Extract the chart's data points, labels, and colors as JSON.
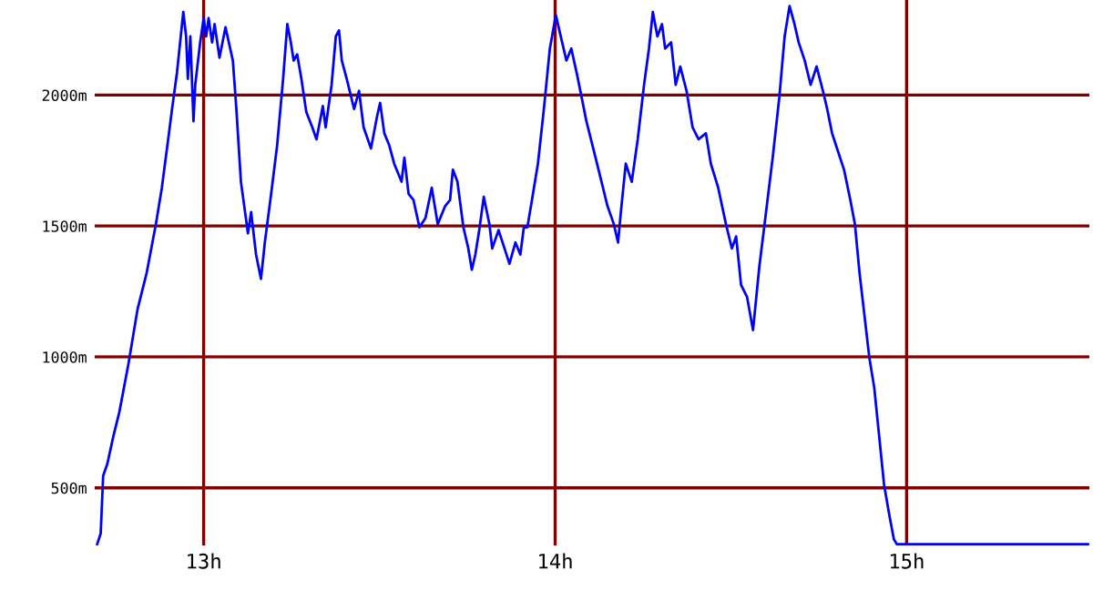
{
  "chart_data": {
    "type": "line",
    "xlim": [
      12.69,
      15.52
    ],
    "ylim": [
      280,
      2363
    ],
    "xticks": [
      {
        "value": 13,
        "label": "13h"
      },
      {
        "value": 14,
        "label": "14h"
      },
      {
        "value": 15,
        "label": "15h"
      }
    ],
    "yticks": [
      {
        "value": 500,
        "label": "500m"
      },
      {
        "value": 1000,
        "label": "1000m"
      },
      {
        "value": 1500,
        "label": "1500m"
      },
      {
        "value": 2000,
        "label": "2000m"
      }
    ],
    "grid": true,
    "marker": "none",
    "line_style": "solid",
    "series": [
      {
        "color": "#0000ff",
        "x": [
          12.697,
          12.707,
          12.714,
          12.726,
          12.743,
          12.76,
          12.786,
          12.812,
          12.838,
          12.864,
          12.881,
          12.899,
          12.91,
          12.924,
          12.942,
          12.95,
          12.955,
          12.962,
          12.971,
          12.976,
          12.99,
          13.0,
          13.007,
          13.014,
          13.024,
          13.031,
          13.045,
          13.062,
          13.083,
          13.093,
          13.106,
          13.126,
          13.135,
          13.149,
          13.163,
          13.174,
          13.192,
          13.209,
          13.226,
          13.238,
          13.248,
          13.256,
          13.266,
          13.278,
          13.292,
          13.309,
          13.321,
          13.339,
          13.347,
          13.364,
          13.376,
          13.385,
          13.393,
          13.407,
          13.428,
          13.442,
          13.455,
          13.476,
          13.494,
          13.502,
          13.514,
          13.528,
          13.542,
          13.563,
          13.571,
          13.583,
          13.597,
          13.614,
          13.631,
          13.649,
          13.666,
          13.687,
          13.701,
          13.709,
          13.722,
          13.739,
          13.753,
          13.763,
          13.773,
          13.784,
          13.797,
          13.813,
          13.821,
          13.839,
          13.856,
          13.87,
          13.887,
          13.901,
          13.911,
          13.921,
          13.934,
          13.951,
          13.968,
          13.985,
          14.002,
          14.02,
          14.032,
          14.046,
          14.063,
          14.089,
          14.115,
          14.132,
          14.149,
          14.167,
          14.179,
          14.187,
          14.201,
          14.218,
          14.235,
          14.253,
          14.267,
          14.278,
          14.291,
          14.304,
          14.313,
          14.33,
          14.343,
          14.356,
          14.374,
          14.391,
          14.408,
          14.429,
          14.443,
          14.464,
          14.486,
          14.503,
          14.515,
          14.529,
          14.546,
          14.563,
          14.581,
          14.598,
          14.619,
          14.638,
          14.653,
          14.667,
          14.681,
          14.693,
          14.71,
          14.727,
          14.744,
          14.762,
          14.774,
          14.788,
          14.805,
          14.822,
          14.84,
          14.853,
          14.866,
          14.878,
          14.894,
          14.908,
          14.922,
          14.936,
          14.951,
          14.964,
          14.972,
          15.516
        ],
        "values": [
          285,
          326,
          546,
          592,
          697,
          789,
          974,
          1183,
          1322,
          1507,
          1646,
          1831,
          1947,
          2085,
          2317,
          2224,
          2062,
          2224,
          1900,
          2039,
          2201,
          2294,
          2224,
          2294,
          2201,
          2271,
          2143,
          2259,
          2132,
          1947,
          1669,
          1472,
          1553,
          1391,
          1298,
          1437,
          1623,
          1808,
          2062,
          2271,
          2201,
          2132,
          2155,
          2062,
          1935,
          1877,
          1831,
          1958,
          1877,
          2039,
          2224,
          2247,
          2132,
          2062,
          1947,
          2016,
          1877,
          1796,
          1923,
          1970,
          1854,
          1808,
          1738,
          1669,
          1761,
          1623,
          1599,
          1495,
          1530,
          1646,
          1507,
          1576,
          1599,
          1715,
          1669,
          1495,
          1414,
          1333,
          1391,
          1484,
          1611,
          1507,
          1414,
          1484,
          1414,
          1356,
          1437,
          1391,
          1495,
          1495,
          1599,
          1738,
          1947,
          2178,
          2305,
          2201,
          2132,
          2178,
          2074,
          1900,
          1761,
          1669,
          1576,
          1507,
          1437,
          1553,
          1738,
          1669,
          1831,
          2039,
          2178,
          2317,
          2224,
          2271,
          2178,
          2201,
          2039,
          2109,
          2016,
          1877,
          1831,
          1854,
          1738,
          1646,
          1507,
          1414,
          1460,
          1275,
          1229,
          1102,
          1345,
          1530,
          1761,
          1993,
          2224,
          2340,
          2271,
          2201,
          2132,
          2039,
          2109,
          2016,
          1947,
          1854,
          1784,
          1715,
          1599,
          1507,
          1322,
          1183,
          997,
          882,
          697,
          511,
          395,
          303,
          285,
          285
        ]
      }
    ]
  }
}
